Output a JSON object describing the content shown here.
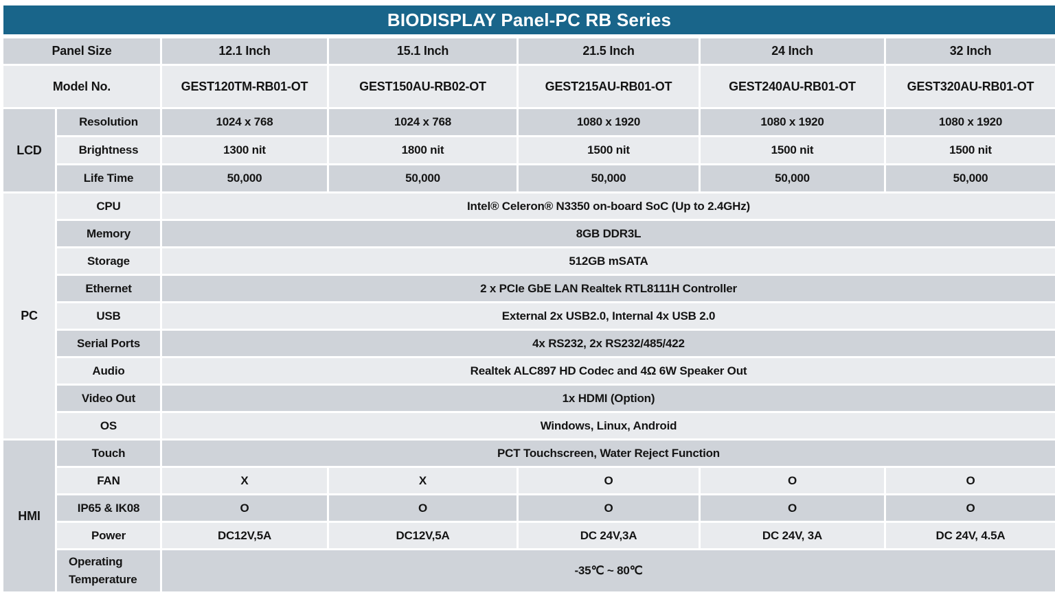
{
  "title": "BIODISPLAY Panel-PC RB Series",
  "colors": {
    "title_bar_bg": "#19658a",
    "title_text": "#ffffff",
    "row_dark": "#cfd3d9",
    "row_light": "#e9ebee",
    "cell_text": "#141414"
  },
  "header": {
    "panel_size_label": "Panel Size",
    "sizes": [
      "12.1 Inch",
      "15.1 Inch",
      "21.5 Inch",
      "24 Inch",
      "32 Inch"
    ],
    "model_label": "Model No.",
    "models": [
      "GEST120TM-RB01-OT",
      "GEST150AU-RB02-OT",
      "GEST215AU-RB01-OT",
      "GEST240AU-RB01-OT",
      "GEST320AU-RB01-OT"
    ]
  },
  "groups": [
    {
      "name": "LCD",
      "rows": [
        {
          "label": "Resolution",
          "values": [
            "1024 x 768",
            "1024 x 768",
            "1080 x 1920",
            "1080 x 1920",
            "1080 x 1920"
          ]
        },
        {
          "label": "Brightness",
          "values": [
            "1300 nit",
            "1800 nit",
            "1500 nit",
            "1500 nit",
            "1500 nit"
          ]
        },
        {
          "label": "Life Time",
          "values": [
            "50,000",
            "50,000",
            "50,000",
            "50,000",
            "50,000"
          ]
        }
      ]
    },
    {
      "name": "PC",
      "rows": [
        {
          "label": "CPU",
          "span": "Intel® Celeron® N3350 on-board SoC (Up to 2.4GHz)"
        },
        {
          "label": "Memory",
          "span": "8GB DDR3L"
        },
        {
          "label": "Storage",
          "span": "512GB mSATA"
        },
        {
          "label": "Ethernet",
          "span": "2 x PCIe GbE LAN Realtek RTL8111H Controller"
        },
        {
          "label": "USB",
          "span": "External 2x USB2.0, Internal 4x USB 2.0"
        },
        {
          "label": "Serial Ports",
          "span": "4x RS232, 2x RS232/485/422"
        },
        {
          "label": "Audio",
          "span": "Realtek ALC897 HD Codec and 4Ω 6W Speaker Out"
        },
        {
          "label": "Video Out",
          "span": "1x HDMI (Option)"
        },
        {
          "label": "OS",
          "span": "Windows, Linux, Android"
        }
      ]
    },
    {
      "name": "HMI",
      "rows": [
        {
          "label": "Touch",
          "span": "PCT Touchscreen, Water Reject Function"
        },
        {
          "label": "FAN",
          "values": [
            "X",
            "X",
            "O",
            "O",
            "O"
          ]
        },
        {
          "label": "IP65 & IK08",
          "values": [
            "O",
            "O",
            "O",
            "O",
            "O"
          ]
        },
        {
          "label": "Power",
          "values": [
            "DC12V,5A",
            "DC12V,5A",
            "DC 24V,3A",
            "DC 24V, 3A",
            "DC 24V, 4.5A"
          ]
        },
        {
          "label": "Operating Temperature",
          "span": "-35℃ ~ 80℃"
        }
      ]
    }
  ]
}
